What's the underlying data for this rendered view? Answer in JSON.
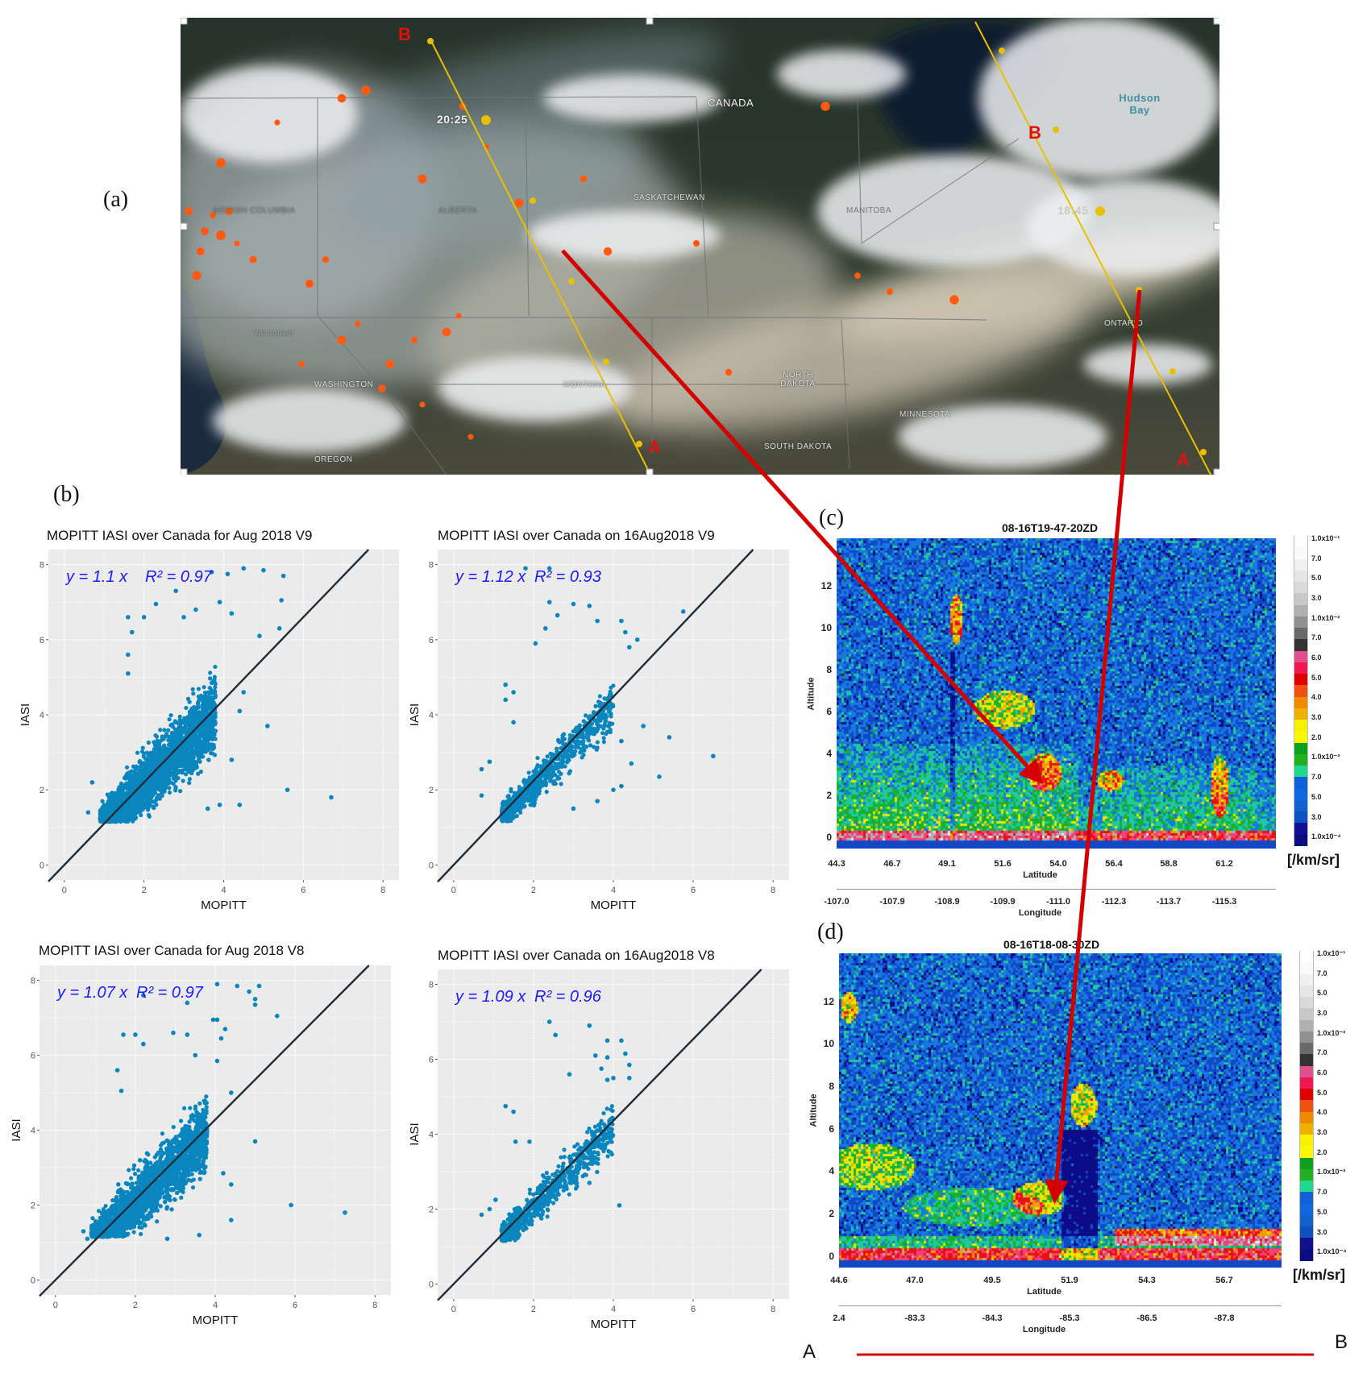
{
  "panels": {
    "a": "(a)",
    "b": "(b)",
    "c": "(c)",
    "d": "(d)"
  },
  "map": {
    "labels": {
      "canada": "CANADA",
      "saskatchewan": "SASKATCHEWAN",
      "alberta": "ALBERTA",
      "british_columbia": "BRITISH COLUMBIA",
      "manitoba": "MANITOBA",
      "hudson_bay": "Hudson Bay",
      "ontario": "ONTARIO",
      "montana": "MONTANA",
      "north_dakota": "NORTH DAKOTA",
      "south_dakota": "SOUTH DAKOTA",
      "minnesota": "MINNESOTA",
      "washington": "WASHINGTON",
      "oregon": "OREGON",
      "vancouver": "Vancouver"
    },
    "tracks": [
      {
        "time": "20:25",
        "start": "A",
        "end": "B"
      },
      {
        "time": "18:45",
        "start": "A",
        "end": "B"
      }
    ],
    "colors": {
      "track": "#e8c000",
      "fire": "#ff5a10",
      "arrow": "#d40000",
      "track_label": "#e01010"
    }
  },
  "footer": {
    "start": "A",
    "end": "B"
  },
  "chart_data": [
    {
      "type": "scatter",
      "title": "MOPITT IASI over Canada for Aug 2018 V9",
      "xlabel": "MOPITT",
      "ylabel": "IASI",
      "xlim": [
        -0.4,
        8.4
      ],
      "ylim": [
        -0.4,
        8.4
      ],
      "xticks": [
        "0",
        "2",
        "4",
        "6",
        "8"
      ],
      "yticks": [
        "0",
        "2",
        "4",
        "6",
        "8"
      ],
      "fit": {
        "slope": 1.1,
        "r2": 0.97,
        "label_eq": "y = 1.1 x",
        "label_r2": "R² = 0.97"
      },
      "point_color": "#0a86bf",
      "line_color": "#1f2d3a",
      "fit_label_color": "#1a1aff",
      "grid": true,
      "points": [
        [
          4.5,
          7.9
        ],
        [
          5.0,
          7.85
        ],
        [
          5.5,
          7.7
        ],
        [
          4.1,
          7.75
        ],
        [
          3.7,
          7.8
        ],
        [
          2.8,
          7.3
        ],
        [
          5.45,
          7.05
        ],
        [
          3.9,
          7.0
        ],
        [
          4.2,
          6.7
        ],
        [
          5.4,
          6.3
        ],
        [
          4.9,
          6.1
        ],
        [
          1.6,
          6.6
        ],
        [
          1.7,
          6.2
        ],
        [
          2.0,
          6.6
        ],
        [
          1.6,
          5.6
        ],
        [
          1.6,
          5.1
        ],
        [
          5.1,
          3.7
        ],
        [
          5.6,
          2.0
        ],
        [
          6.7,
          1.8
        ],
        [
          4.4,
          1.6
        ],
        [
          4.2,
          2.8
        ],
        [
          4.4,
          4.1
        ],
        [
          4.5,
          4.6
        ],
        [
          2.3,
          6.95
        ],
        [
          3.3,
          6.8
        ],
        [
          3.0,
          6.6
        ],
        [
          0.6,
          1.4
        ],
        [
          0.7,
          2.2
        ],
        [
          3.6,
          1.5
        ],
        [
          3.9,
          1.6
        ]
      ]
    },
    {
      "type": "scatter",
      "title": "MOPITT IASI over Canada on 16Aug2018 V9",
      "xlabel": "MOPITT",
      "ylabel": "IASI",
      "xlim": [
        -0.4,
        8.4
      ],
      "ylim": [
        -0.4,
        8.4
      ],
      "xticks": [
        "0",
        "2",
        "4",
        "6",
        "8"
      ],
      "yticks": [
        "0",
        "2",
        "4",
        "6",
        "8"
      ],
      "fit": {
        "slope": 1.12,
        "r2": 0.93,
        "label_eq": "y = 1.12 x",
        "label_r2": "R² = 0.93"
      },
      "point_color": "#0a86bf",
      "line_color": "#1f2d3a",
      "fit_label_color": "#1a1aff",
      "grid": true,
      "points": [
        [
          1.8,
          7.9
        ],
        [
          2.4,
          7.9
        ],
        [
          2.4,
          7.0
        ],
        [
          3.0,
          6.95
        ],
        [
          3.4,
          6.9
        ],
        [
          2.6,
          6.65
        ],
        [
          2.3,
          6.3
        ],
        [
          3.6,
          6.5
        ],
        [
          4.2,
          6.5
        ],
        [
          4.3,
          6.2
        ],
        [
          4.6,
          6.0
        ],
        [
          4.4,
          5.8
        ],
        [
          5.75,
          6.75
        ],
        [
          2.05,
          5.9
        ],
        [
          1.3,
          4.8
        ],
        [
          1.5,
          4.6
        ],
        [
          1.3,
          4.4
        ],
        [
          1.5,
          3.8
        ],
        [
          4.75,
          3.7
        ],
        [
          5.4,
          3.4
        ],
        [
          6.5,
          2.9
        ],
        [
          5.15,
          2.35
        ],
        [
          4.45,
          2.7
        ],
        [
          4.2,
          3.3
        ],
        [
          4.0,
          2.0
        ],
        [
          4.2,
          2.1
        ],
        [
          3.6,
          1.7
        ],
        [
          3.0,
          1.5
        ],
        [
          0.7,
          2.55
        ],
        [
          0.7,
          1.85
        ],
        [
          0.9,
          2.75
        ]
      ]
    },
    {
      "type": "scatter",
      "title": "MOPITT IASI over Canada for Aug 2018 V8",
      "xlabel": "MOPITT",
      "ylabel": "IASI",
      "xlim": [
        -0.4,
        8.4
      ],
      "ylim": [
        -0.4,
        8.4
      ],
      "xticks": [
        "0",
        "2",
        "4",
        "6",
        "8"
      ],
      "yticks": [
        "0",
        "2",
        "4",
        "6",
        "8"
      ],
      "fit": {
        "slope": 1.07,
        "r2": 0.97,
        "label_eq": "y = 1.07 x",
        "label_r2": "R² = 0.97"
      },
      "point_color": "#0a86bf",
      "line_color": "#1f2d3a",
      "fit_label_color": "#1a1aff",
      "grid": true,
      "points": [
        [
          4.05,
          7.9
        ],
        [
          4.55,
          7.85
        ],
        [
          5.1,
          7.85
        ],
        [
          4.85,
          7.7
        ],
        [
          5.0,
          7.5
        ],
        [
          5.0,
          7.35
        ],
        [
          2.2,
          7.6
        ],
        [
          3.3,
          7.4
        ],
        [
          5.55,
          7.05
        ],
        [
          3.95,
          6.95
        ],
        [
          4.05,
          6.95
        ],
        [
          4.25,
          6.7
        ],
        [
          4.15,
          6.45
        ],
        [
          1.7,
          6.55
        ],
        [
          2.0,
          6.55
        ],
        [
          2.2,
          6.3
        ],
        [
          2.95,
          6.6
        ],
        [
          3.3,
          6.55
        ],
        [
          3.5,
          6.0
        ],
        [
          4.05,
          5.85
        ],
        [
          1.55,
          5.6
        ],
        [
          1.65,
          5.05
        ],
        [
          5.0,
          3.7
        ],
        [
          4.4,
          2.55
        ],
        [
          5.9,
          2.0
        ],
        [
          7.25,
          1.8
        ],
        [
          4.4,
          1.6
        ],
        [
          4.2,
          2.85
        ],
        [
          4.4,
          5.0
        ],
        [
          0.7,
          1.3
        ],
        [
          0.8,
          1.1
        ],
        [
          3.6,
          1.2
        ],
        [
          2.8,
          1.1
        ]
      ]
    },
    {
      "type": "scatter",
      "title": "MOPITT IASI over Canada on 16Aug2018 V8",
      "xlabel": "MOPITT",
      "ylabel": "IASI",
      "xlim": [
        -0.4,
        8.4
      ],
      "ylim": [
        -0.4,
        8.4
      ],
      "xticks": [
        "0",
        "2",
        "4",
        "6",
        "8"
      ],
      "yticks": [
        "0",
        "2",
        "4",
        "6",
        "8"
      ],
      "fit": {
        "slope": 1.09,
        "r2": 0.96,
        "label_eq": "y = 1.09 x",
        "label_r2": "R² = 0.96"
      },
      "point_color": "#0a86bf",
      "line_color": "#1f2d3a",
      "fit_label_color": "#1a1aff",
      "grid": true,
      "points": [
        [
          2.4,
          7.0
        ],
        [
          3.4,
          6.9
        ],
        [
          2.55,
          6.65
        ],
        [
          3.85,
          6.5
        ],
        [
          4.2,
          6.5
        ],
        [
          4.3,
          6.15
        ],
        [
          3.55,
          6.1
        ],
        [
          3.85,
          6.05
        ],
        [
          4.4,
          5.85
        ],
        [
          3.7,
          5.75
        ],
        [
          2.9,
          5.6
        ],
        [
          4.4,
          5.5
        ],
        [
          4.0,
          5.5
        ],
        [
          3.85,
          5.45
        ],
        [
          1.3,
          4.75
        ],
        [
          1.5,
          4.6
        ],
        [
          1.55,
          3.8
        ],
        [
          1.9,
          3.8
        ],
        [
          4.15,
          2.1
        ],
        [
          0.7,
          1.85
        ],
        [
          1.05,
          2.25
        ],
        [
          0.9,
          2.0
        ],
        [
          3.4,
          2.7
        ]
      ]
    },
    {
      "type": "heatmap",
      "title": "08-16T19-47-20ZD",
      "ylabel": "Altitude",
      "xlabel": "Latitude",
      "x2label": "Longitude",
      "ylim": [
        -0.5,
        14.3
      ],
      "yticks": [
        "0",
        "2",
        "4",
        "6",
        "8",
        "10",
        "12"
      ],
      "xticks": [
        "44.3",
        "46.7",
        "49.1",
        "51.6",
        "54.0",
        "56.4",
        "58.8",
        "61.2"
      ],
      "x2ticks": [
        "-107.0",
        "-107.9",
        "-108.9",
        "-109.9",
        "-111.0",
        "-112.3",
        "-113.7",
        "-115.3"
      ],
      "colorbar": {
        "unit": "[/km/sr]",
        "labels": [
          "1.0x10⁻¹",
          "7.0",
          "5.0",
          "3.0",
          "1.0x10⁻²",
          "7.0",
          "6.0",
          "5.0",
          "4.0",
          "3.0",
          "2.0",
          "1.0x10⁻³",
          "7.0",
          "5.0",
          "3.0",
          "1.0x10⁻⁴"
        ]
      }
    },
    {
      "type": "heatmap",
      "title": "08-16T18-08-30ZD",
      "ylabel": "Altitude",
      "xlabel": "Latitude",
      "x2label": "Longitude",
      "ylim": [
        -0.5,
        14.3
      ],
      "yticks": [
        "0",
        "2",
        "4",
        "6",
        "8",
        "10",
        "12"
      ],
      "xticks": [
        "44.6",
        "47.0",
        "49.5",
        "51.9",
        "54.3",
        "56.7"
      ],
      "x2ticks": [
        "2.4",
        "-83.3",
        "-84.3",
        "-85.3",
        "-86.5",
        "-87.8"
      ],
      "colorbar": {
        "unit": "[/km/sr]",
        "labels": [
          "1.0x10⁻¹",
          "7.0",
          "5.0",
          "3.0",
          "1.0x10⁻²",
          "7.0",
          "6.0",
          "5.0",
          "4.0",
          "3.0",
          "2.0",
          "1.0x10⁻³",
          "7.0",
          "5.0",
          "3.0",
          "1.0x10⁻⁴"
        ]
      }
    }
  ]
}
